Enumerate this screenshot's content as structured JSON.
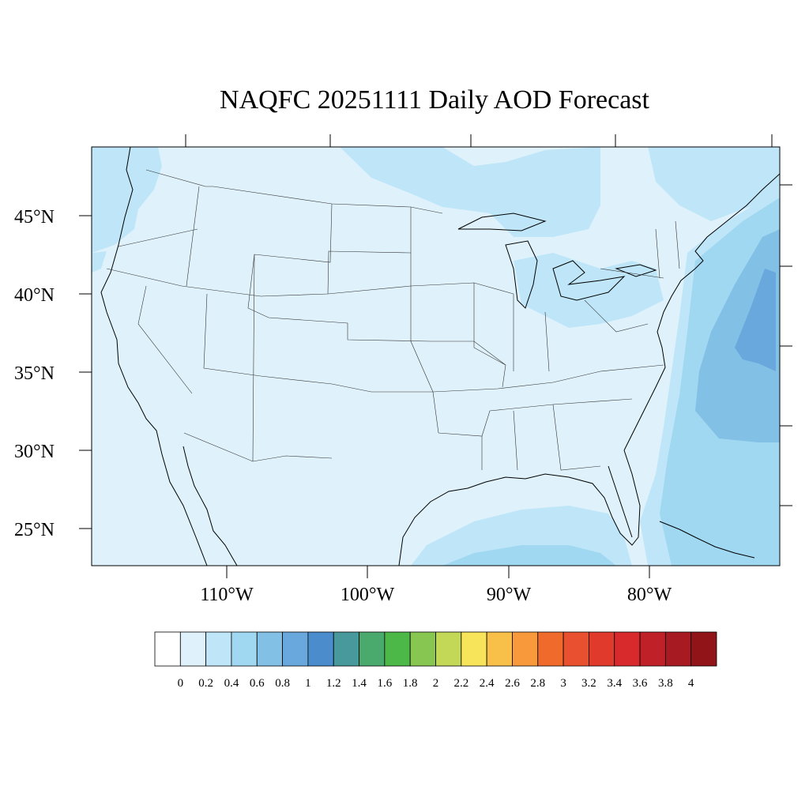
{
  "title": "NAQFC 20251111 Daily AOD Forecast",
  "map": {
    "projection": "Lambert conformal (approx.)",
    "lat_labels": [
      "45°N",
      "40°N",
      "35°N",
      "30°N",
      "25°N"
    ],
    "lon_labels": [
      "110°W",
      "100°W",
      "90°W",
      "80°W"
    ],
    "background_color": "#dff2fb",
    "border_color": "#000000",
    "field_regions": [
      {
        "name": "pacific-northwest",
        "level": 0.4
      },
      {
        "name": "upper-midwest",
        "level": 0.4
      },
      {
        "name": "great-lakes-northeast",
        "level": 0.4
      },
      {
        "name": "atlantic-offshore",
        "level": 0.6
      },
      {
        "name": "atlantic-max",
        "level": 0.8
      },
      {
        "name": "gulf-of-mexico",
        "level": 0.4
      },
      {
        "name": "florida-atlantic",
        "level": 0.6
      }
    ]
  },
  "colorbar": {
    "labels": [
      "0",
      "0.2",
      "0.4",
      "0.6",
      "0.8",
      "1",
      "1.2",
      "1.4",
      "1.6",
      "1.8",
      "2",
      "2.2",
      "2.4",
      "2.6",
      "2.8",
      "3",
      "3.2",
      "3.4",
      "3.6",
      "3.8",
      "4"
    ],
    "colors": [
      "#ffffff",
      "#dff2fb",
      "#bfe6f8",
      "#a0d8f2",
      "#82c0e6",
      "#68a8dc",
      "#4a8ccc",
      "#48999c",
      "#4aaa6e",
      "#4cb848",
      "#88c652",
      "#c4d858",
      "#f8e45a",
      "#f8c048",
      "#f89a3c",
      "#f06a2c",
      "#e85030",
      "#e03a2c",
      "#d82a2c",
      "#c02028",
      "#a81a22",
      "#901418"
    ]
  }
}
